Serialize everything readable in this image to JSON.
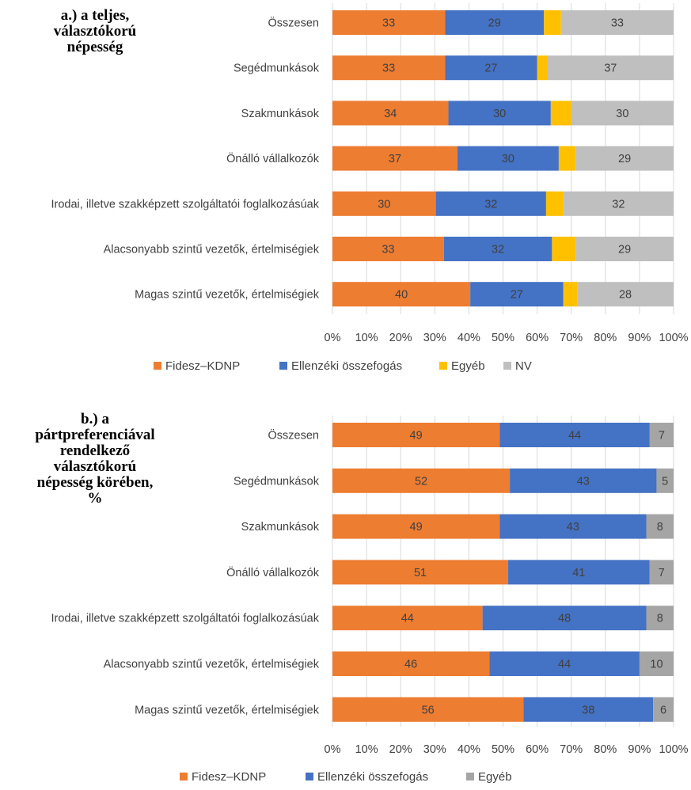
{
  "chart_data": [
    {
      "type": "bar",
      "orientation": "horizontal",
      "stacked": "percent",
      "title": "a.) a teljes,\nválasztókorú\nnépesség",
      "categories": [
        "Összesen",
        "Segédmunkások",
        "Szakmunkások",
        "Önálló vállalkozók",
        "Irodai, illetve szakképzett szolgáltatói foglalkozásúak",
        "Alacsonyabb szintű vezetők, értelmiségiek",
        "Magas szintű vezetők, értelmiségiek"
      ],
      "series": [
        {
          "name": "Fidesz–KDNP",
          "color": "#ED7D31",
          "values": [
            33,
            33,
            34,
            37,
            30,
            33,
            40
          ],
          "labels": [
            "33",
            "33",
            "34",
            "37",
            "30",
            "33",
            "40"
          ]
        },
        {
          "name": "Ellenzéki összefogás",
          "color": "#4472C4",
          "values": [
            29,
            27,
            30,
            30,
            32,
            32,
            27
          ],
          "labels": [
            "29",
            "27",
            "30",
            "30",
            "32",
            "32",
            "27"
          ]
        },
        {
          "name": "Egyéb",
          "color": "#FFC000",
          "values": [
            5,
            3,
            6,
            5,
            5,
            7,
            4
          ],
          "labels": [
            "",
            "",
            "",
            "",
            "",
            "",
            ""
          ]
        },
        {
          "name": "NV",
          "color": "#BFBFBF",
          "values": [
            33,
            37,
            30,
            29,
            32,
            29,
            28
          ],
          "labels": [
            "33",
            "37",
            "30",
            "29",
            "32",
            "29",
            "28"
          ]
        }
      ],
      "xticks": [
        "0%",
        "10%",
        "20%",
        "30%",
        "40%",
        "50%",
        "60%",
        "70%",
        "80%",
        "90%",
        "100%"
      ],
      "xlim": [
        0,
        100
      ],
      "legend_position": "bottom",
      "grid": true
    },
    {
      "type": "bar",
      "orientation": "horizontal",
      "stacked": "percent",
      "title": "b.) a\npártpreferenciával\nrendelkező\nválasztókorú\nnépesség körében,\n%",
      "categories": [
        "Összesen",
        "Segédmunkások",
        "Szakmunkások",
        "Önálló vállalkozók",
        "Irodai, illetve szakképzett szolgáltatói foglalkozásúak",
        "Alacsonyabb szintű vezetők, értelmiségiek",
        "Magas szintű vezetők, értelmiségiek"
      ],
      "series": [
        {
          "name": "Fidesz–KDNP",
          "color": "#ED7D31",
          "values": [
            49,
            52,
            49,
            51,
            44,
            46,
            56
          ],
          "labels": [
            "49",
            "52",
            "49",
            "51",
            "44",
            "46",
            "56"
          ]
        },
        {
          "name": "Ellenzéki összefogás",
          "color": "#4472C4",
          "values": [
            44,
            43,
            43,
            41,
            48,
            44,
            38
          ],
          "labels": [
            "44",
            "43",
            "43",
            "41",
            "48",
            "44",
            "38"
          ]
        },
        {
          "name": "Egyéb",
          "color": "#A5A5A5",
          "values": [
            7,
            5,
            8,
            7,
            8,
            10,
            6
          ],
          "labels": [
            "7",
            "5",
            "8",
            "7",
            "8",
            "10",
            "6"
          ]
        }
      ],
      "xticks": [
        "0%",
        "10%",
        "20%",
        "30%",
        "40%",
        "50%",
        "60%",
        "70%",
        "80%",
        "90%",
        "100%"
      ],
      "xlim": [
        0,
        100
      ],
      "legend_position": "bottom",
      "grid": true
    }
  ]
}
